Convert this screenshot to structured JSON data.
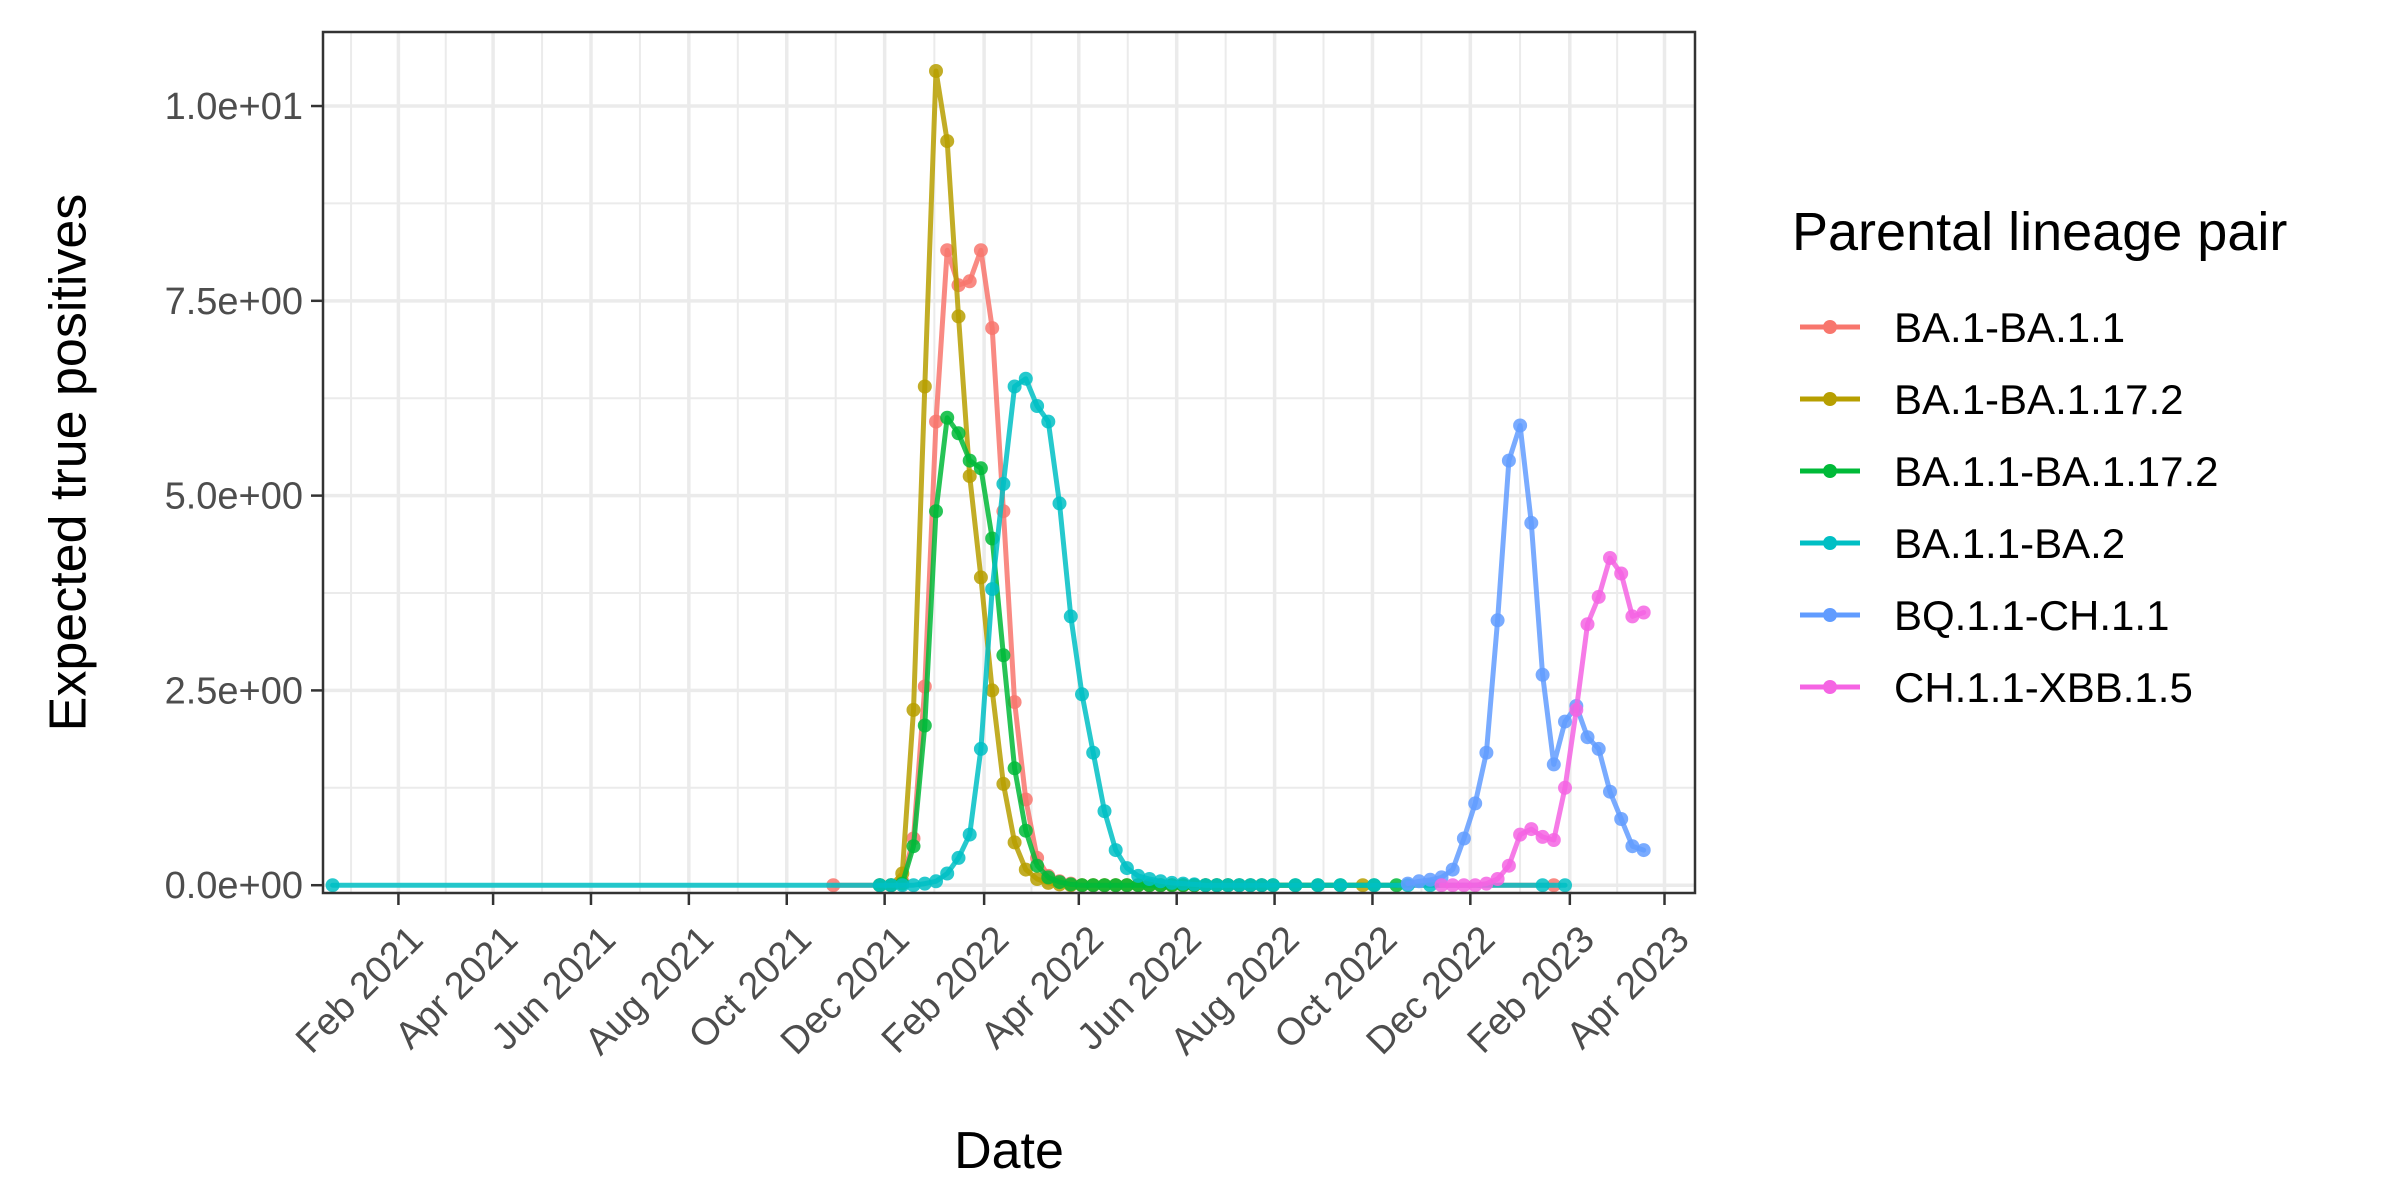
{
  "chart_data": {
    "type": "line",
    "xlabel": "Date",
    "ylabel": "Expected true positives",
    "x_axis": {
      "type": "date",
      "range": [
        "2020-12-16",
        "2023-04-20"
      ],
      "ticks": [
        {
          "date": "2021-02-01",
          "label": "Feb 2021"
        },
        {
          "date": "2021-04-01",
          "label": "Apr 2021"
        },
        {
          "date": "2021-06-01",
          "label": "Jun 2021"
        },
        {
          "date": "2021-08-01",
          "label": "Aug 2021"
        },
        {
          "date": "2021-10-01",
          "label": "Oct 2021"
        },
        {
          "date": "2021-12-01",
          "label": "Dec 2021"
        },
        {
          "date": "2022-02-01",
          "label": "Feb 2022"
        },
        {
          "date": "2022-04-01",
          "label": "Apr 2022"
        },
        {
          "date": "2022-06-01",
          "label": "Jun 2022"
        },
        {
          "date": "2022-08-01",
          "label": "Aug 2022"
        },
        {
          "date": "2022-10-01",
          "label": "Oct 2022"
        },
        {
          "date": "2022-12-01",
          "label": "Dec 2022"
        },
        {
          "date": "2023-02-01",
          "label": "Feb 2023"
        },
        {
          "date": "2023-04-01",
          "label": "Apr 2023"
        }
      ]
    },
    "y_axis": {
      "range": [
        -0.1,
        10.95
      ],
      "ticks": [
        {
          "value": 0,
          "label": "0.0e+00"
        },
        {
          "value": 2.5,
          "label": "2.5e+00"
        },
        {
          "value": 5,
          "label": "5.0e+00"
        },
        {
          "value": 7.5,
          "label": "7.5e+00"
        },
        {
          "value": 10,
          "label": "1.0e+01"
        }
      ]
    },
    "grid": true,
    "legend": {
      "title": "Parental lineage pair",
      "position": "right"
    },
    "series": [
      {
        "name": "BA.1-BA.1.1",
        "color": "#F8766D",
        "points": [
          [
            "2021-10-30",
            0
          ],
          [
            "2021-11-28",
            0
          ],
          [
            "2021-12-05",
            0
          ],
          [
            "2021-12-12",
            0.05
          ],
          [
            "2021-12-19",
            0.6
          ],
          [
            "2021-12-26",
            2.55
          ],
          [
            "2022-01-02",
            5.95
          ],
          [
            "2022-01-09",
            8.15
          ],
          [
            "2022-01-16",
            7.7
          ],
          [
            "2022-01-23",
            7.75
          ],
          [
            "2022-01-30",
            8.15
          ],
          [
            "2022-02-06",
            7.15
          ],
          [
            "2022-02-13",
            4.8
          ],
          [
            "2022-02-20",
            2.35
          ],
          [
            "2022-02-27",
            1.1
          ],
          [
            "2022-03-06",
            0.35
          ],
          [
            "2022-03-13",
            0.12
          ],
          [
            "2022-03-20",
            0.05
          ],
          [
            "2022-03-27",
            0.02
          ],
          [
            "2022-04-03",
            0
          ],
          [
            "2022-04-10",
            0
          ],
          [
            "2022-04-17",
            0
          ],
          [
            "2022-04-24",
            0
          ],
          [
            "2022-05-01",
            0
          ],
          [
            "2022-05-08",
            0
          ],
          [
            "2022-05-15",
            0
          ],
          [
            "2022-05-22",
            0
          ],
          [
            "2022-05-29",
            0
          ],
          [
            "2022-06-05",
            0
          ],
          [
            "2022-06-12",
            0
          ],
          [
            "2022-06-19",
            0
          ],
          [
            "2022-06-26",
            0
          ],
          [
            "2022-07-03",
            0
          ],
          [
            "2022-07-10",
            0
          ],
          [
            "2022-07-17",
            0
          ],
          [
            "2022-07-24",
            0
          ],
          [
            "2023-01-22",
            0
          ]
        ]
      },
      {
        "name": "BA.1-BA.1.17.2",
        "color": "#B79F00",
        "points": [
          [
            "2021-11-28",
            0
          ],
          [
            "2021-12-05",
            0
          ],
          [
            "2021-12-12",
            0.15
          ],
          [
            "2021-12-19",
            2.25
          ],
          [
            "2021-12-26",
            6.4
          ],
          [
            "2022-01-02",
            10.45
          ],
          [
            "2022-01-09",
            9.55
          ],
          [
            "2022-01-16",
            7.3
          ],
          [
            "2022-01-23",
            5.25
          ],
          [
            "2022-01-30",
            3.95
          ],
          [
            "2022-02-06",
            2.5
          ],
          [
            "2022-02-13",
            1.3
          ],
          [
            "2022-02-20",
            0.55
          ],
          [
            "2022-02-27",
            0.2
          ],
          [
            "2022-03-06",
            0.08
          ],
          [
            "2022-03-13",
            0.03
          ],
          [
            "2022-03-20",
            0.01
          ],
          [
            "2022-03-27",
            0
          ],
          [
            "2022-04-03",
            0
          ],
          [
            "2022-04-10",
            0
          ],
          [
            "2022-04-17",
            0
          ],
          [
            "2022-04-24",
            0
          ],
          [
            "2022-05-01",
            0
          ],
          [
            "2022-05-08",
            0
          ],
          [
            "2022-05-15",
            0
          ],
          [
            "2022-05-22",
            0
          ],
          [
            "2022-05-29",
            0
          ],
          [
            "2022-06-05",
            0
          ],
          [
            "2022-06-12",
            0
          ],
          [
            "2022-06-19",
            0
          ],
          [
            "2022-06-26",
            0
          ],
          [
            "2022-07-03",
            0
          ],
          [
            "2022-09-25",
            0
          ]
        ]
      },
      {
        "name": "BA.1.1-BA.1.17.2",
        "color": "#00BA38",
        "points": [
          [
            "2021-11-28",
            0
          ],
          [
            "2021-12-05",
            0
          ],
          [
            "2021-12-12",
            0.02
          ],
          [
            "2021-12-19",
            0.5
          ],
          [
            "2021-12-26",
            2.05
          ],
          [
            "2022-01-02",
            4.8
          ],
          [
            "2022-01-09",
            6.0
          ],
          [
            "2022-01-16",
            5.8
          ],
          [
            "2022-01-23",
            5.45
          ],
          [
            "2022-01-30",
            5.35
          ],
          [
            "2022-02-06",
            4.45
          ],
          [
            "2022-02-13",
            2.95
          ],
          [
            "2022-02-20",
            1.5
          ],
          [
            "2022-02-27",
            0.7
          ],
          [
            "2022-03-06",
            0.25
          ],
          [
            "2022-03-13",
            0.1
          ],
          [
            "2022-03-20",
            0.04
          ],
          [
            "2022-03-27",
            0.01
          ],
          [
            "2022-04-03",
            0
          ],
          [
            "2022-04-10",
            0
          ],
          [
            "2022-04-17",
            0
          ],
          [
            "2022-04-24",
            0
          ],
          [
            "2022-05-01",
            0
          ],
          [
            "2022-05-08",
            0
          ],
          [
            "2022-05-15",
            0
          ],
          [
            "2022-05-22",
            0
          ],
          [
            "2022-05-29",
            0
          ],
          [
            "2022-06-05",
            0
          ],
          [
            "2022-06-12",
            0
          ],
          [
            "2022-06-19",
            0
          ],
          [
            "2022-06-26",
            0
          ],
          [
            "2022-07-03",
            0
          ],
          [
            "2022-07-10",
            0
          ],
          [
            "2022-07-17",
            0
          ],
          [
            "2022-07-24",
            0
          ],
          [
            "2022-07-31",
            0
          ],
          [
            "2022-08-14",
            0
          ],
          [
            "2022-08-28",
            0
          ],
          [
            "2022-09-11",
            0
          ],
          [
            "2022-10-02",
            0
          ],
          [
            "2022-10-16",
            0
          ]
        ]
      },
      {
        "name": "BA.1.1-BA.2",
        "color": "#00BFC4",
        "points": [
          [
            "2020-12-22",
            0
          ],
          [
            "2021-11-28",
            0
          ],
          [
            "2021-12-05",
            0
          ],
          [
            "2021-12-12",
            0
          ],
          [
            "2021-12-19",
            0
          ],
          [
            "2021-12-26",
            0.02
          ],
          [
            "2022-01-02",
            0.05
          ],
          [
            "2022-01-09",
            0.15
          ],
          [
            "2022-01-16",
            0.35
          ],
          [
            "2022-01-23",
            0.65
          ],
          [
            "2022-01-30",
            1.75
          ],
          [
            "2022-02-06",
            3.8
          ],
          [
            "2022-02-13",
            5.15
          ],
          [
            "2022-02-20",
            6.4
          ],
          [
            "2022-02-27",
            6.5
          ],
          [
            "2022-03-06",
            6.15
          ],
          [
            "2022-03-13",
            5.95
          ],
          [
            "2022-03-20",
            4.9
          ],
          [
            "2022-03-27",
            3.45
          ],
          [
            "2022-04-03",
            2.45
          ],
          [
            "2022-04-10",
            1.7
          ],
          [
            "2022-04-17",
            0.95
          ],
          [
            "2022-04-24",
            0.45
          ],
          [
            "2022-05-01",
            0.22
          ],
          [
            "2022-05-08",
            0.12
          ],
          [
            "2022-05-15",
            0.08
          ],
          [
            "2022-05-22",
            0.05
          ],
          [
            "2022-05-29",
            0.03
          ],
          [
            "2022-06-05",
            0.02
          ],
          [
            "2022-06-12",
            0.01
          ],
          [
            "2022-06-19",
            0
          ],
          [
            "2022-06-26",
            0
          ],
          [
            "2022-07-03",
            0
          ],
          [
            "2022-07-10",
            0
          ],
          [
            "2022-07-17",
            0
          ],
          [
            "2022-07-24",
            0
          ],
          [
            "2022-07-31",
            0
          ],
          [
            "2022-08-14",
            0
          ],
          [
            "2022-08-28",
            0
          ],
          [
            "2022-09-11",
            0
          ],
          [
            "2022-10-02",
            0
          ],
          [
            "2022-10-23",
            0
          ],
          [
            "2022-11-06",
            0
          ],
          [
            "2023-01-15",
            0
          ],
          [
            "2023-01-29",
            0
          ]
        ]
      },
      {
        "name": "BQ.1.1-CH.1.1",
        "color": "#619CFF",
        "points": [
          [
            "2022-10-23",
            0.02
          ],
          [
            "2022-10-30",
            0.05
          ],
          [
            "2022-11-06",
            0.07
          ],
          [
            "2022-11-13",
            0.1
          ],
          [
            "2022-11-20",
            0.2
          ],
          [
            "2022-11-27",
            0.6
          ],
          [
            "2022-12-04",
            1.05
          ],
          [
            "2022-12-11",
            1.7
          ],
          [
            "2022-12-18",
            3.4
          ],
          [
            "2022-12-25",
            5.45
          ],
          [
            "2023-01-01",
            5.9
          ],
          [
            "2023-01-08",
            4.65
          ],
          [
            "2023-01-15",
            2.7
          ],
          [
            "2023-01-22",
            1.55
          ],
          [
            "2023-01-29",
            2.1
          ],
          [
            "2023-02-05",
            2.3
          ],
          [
            "2023-02-12",
            1.9
          ],
          [
            "2023-02-19",
            1.75
          ],
          [
            "2023-02-26",
            1.2
          ],
          [
            "2023-03-05",
            0.85
          ],
          [
            "2023-03-12",
            0.5
          ],
          [
            "2023-03-19",
            0.45
          ]
        ]
      },
      {
        "name": "CH.1.1-XBB.1.5",
        "color": "#F564E3",
        "points": [
          [
            "2022-11-13",
            0
          ],
          [
            "2022-11-20",
            0
          ],
          [
            "2022-11-27",
            0
          ],
          [
            "2022-12-04",
            0
          ],
          [
            "2022-12-11",
            0.02
          ],
          [
            "2022-12-18",
            0.08
          ],
          [
            "2022-12-25",
            0.25
          ],
          [
            "2023-01-01",
            0.65
          ],
          [
            "2023-01-08",
            0.72
          ],
          [
            "2023-01-15",
            0.62
          ],
          [
            "2023-01-22",
            0.58
          ],
          [
            "2023-01-29",
            1.25
          ],
          [
            "2023-02-05",
            2.25
          ],
          [
            "2023-02-12",
            3.35
          ],
          [
            "2023-02-19",
            3.7
          ],
          [
            "2023-02-26",
            4.2
          ],
          [
            "2023-03-05",
            4.0
          ],
          [
            "2023-03-12",
            3.45
          ],
          [
            "2023-03-19",
            3.5
          ]
        ]
      }
    ]
  }
}
